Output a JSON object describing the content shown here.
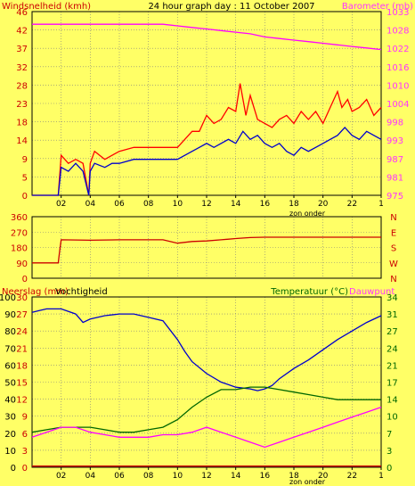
{
  "colors": {
    "background": "#ffff66",
    "axis": "#000000",
    "grid": "#7f7f7f",
    "wind_label": "#cc0000",
    "baro_label": "#ff33ff",
    "green_label": "#006600",
    "dir_label": "#cc0000",
    "rain_label": "#cc0000"
  },
  "chart_data": [
    {
      "type": "line",
      "title": "24 hour graph day : 11 October 2007",
      "ylabel_left": "Windsnelheid (kmh)",
      "ylabel_right": "Barometer (mb)",
      "yticks_left": [
        "0",
        "5",
        "9",
        "14",
        "18",
        "23",
        "28",
        "32",
        "37",
        "42",
        "46"
      ],
      "yticks_right": [
        "975",
        "981",
        "987",
        "993",
        "998",
        "1004",
        "1010",
        "1016",
        "1022",
        "1028",
        "1033"
      ],
      "ylim_left": [
        0,
        46
      ],
      "ylim_right": [
        975,
        1033
      ],
      "xticks": [
        "02",
        "04",
        "06",
        "08",
        "10",
        "12",
        "14",
        "16",
        "18",
        "20",
        "22",
        "1"
      ],
      "xnote": "zon onder",
      "xlim": [
        0,
        24
      ],
      "series": [
        {
          "color": "#ff00ff",
          "axis": "right",
          "x": [
            0,
            1,
            2,
            3,
            4,
            5,
            6,
            7,
            8,
            9,
            10,
            11,
            12,
            13,
            14,
            15,
            16,
            17,
            18,
            19,
            20,
            21,
            22,
            23,
            24
          ],
          "y": [
            1029,
            1029,
            1029,
            1029,
            1029,
            1029,
            1029,
            1029,
            1029,
            1029,
            1028.5,
            1028,
            1027.5,
            1027,
            1026.5,
            1026,
            1025,
            1024.5,
            1024,
            1023.5,
            1023,
            1022.5,
            1022,
            1021.5,
            1021
          ]
        },
        {
          "color": "#ff0000",
          "axis": "left",
          "x": [
            0,
            1.8,
            2,
            2.5,
            3,
            3.5,
            3.9,
            4,
            4.3,
            5,
            5.5,
            6,
            7,
            8,
            9,
            10,
            10.5,
            11,
            11.5,
            12,
            12.5,
            13,
            13.5,
            14,
            14.3,
            14.7,
            15,
            15.5,
            16,
            16.5,
            17,
            17.5,
            18,
            18.5,
            19,
            19.5,
            20,
            20.5,
            21,
            21.3,
            21.7,
            22,
            22.5,
            23,
            23.5,
            24
          ],
          "y": [
            0,
            0,
            10,
            8,
            9,
            8,
            0,
            8,
            11,
            9,
            10,
            11,
            12,
            12,
            12,
            12,
            14,
            16,
            16,
            20,
            18,
            19,
            22,
            21,
            28,
            20,
            25,
            19,
            18,
            17,
            19,
            20,
            18,
            21,
            19,
            21,
            18,
            22,
            26,
            22,
            24,
            21,
            22,
            24,
            20,
            22
          ]
        },
        {
          "color": "#0000cc",
          "axis": "left",
          "x": [
            0,
            1.8,
            2,
            2.5,
            3,
            3.5,
            3.9,
            4,
            4.3,
            5,
            5.5,
            6,
            7,
            8,
            9,
            10,
            10.5,
            11,
            11.5,
            12,
            12.5,
            13,
            13.5,
            14,
            14.5,
            15,
            15.5,
            16,
            16.5,
            17,
            17.5,
            18,
            18.5,
            19,
            19.5,
            20,
            20.5,
            21,
            21.5,
            22,
            22.5,
            23,
            23.5,
            24
          ],
          "y": [
            0,
            0,
            7,
            6,
            8,
            6,
            0,
            6,
            8,
            7,
            8,
            8,
            9,
            9,
            9,
            9,
            10,
            11,
            12,
            13,
            12,
            13,
            14,
            13,
            16,
            14,
            15,
            13,
            12,
            13,
            11,
            10,
            12,
            11,
            12,
            13,
            14,
            15,
            17,
            15,
            14,
            16,
            15,
            14
          ]
        }
      ]
    },
    {
      "type": "line",
      "ylabel_left": "",
      "yticks_left": [
        "0",
        "90",
        "180",
        "270",
        "360"
      ],
      "ylim_left": [
        0,
        360
      ],
      "right_labels": [
        "N",
        "W",
        "S",
        "E",
        "N"
      ],
      "xlim": [
        0,
        24
      ],
      "series": [
        {
          "color": "#cc0000",
          "axis": "left",
          "x": [
            0,
            1.8,
            1.9,
            2,
            4,
            6,
            8,
            9,
            10,
            11,
            12,
            13,
            14,
            15,
            16,
            17,
            18,
            19,
            20,
            21,
            22,
            23,
            24
          ],
          "y": [
            90,
            90,
            160,
            225,
            222,
            225,
            225,
            225,
            205,
            215,
            218,
            225,
            232,
            238,
            240,
            240,
            240,
            240,
            240,
            240,
            240,
            240,
            240
          ]
        }
      ]
    },
    {
      "type": "line",
      "ylabel_left": "Neerslag (mm)",
      "ylabel_left2": "Vochtigheid",
      "ylabel_right": "Temperatuur (°C)",
      "ylabel_right2": "Dauwpunt",
      "yticks_rain": [
        "0",
        "3",
        "6",
        "9",
        "12",
        "15",
        "18",
        "21",
        "24",
        "27",
        "30"
      ],
      "yticks_humid": [
        "0",
        "10",
        "20",
        "30",
        "40",
        "50",
        "60",
        "70",
        "80",
        "90",
        "100"
      ],
      "yticks_right": [
        "0",
        "3",
        "7",
        "10",
        "14",
        "17",
        "21",
        "24",
        "27",
        "31",
        "34"
      ],
      "ylim_rain": [
        0,
        30
      ],
      "ylim_humid": [
        0,
        100
      ],
      "ylim_right": [
        0,
        34
      ],
      "xticks": [
        "02",
        "04",
        "06",
        "08",
        "10",
        "12",
        "14",
        "16",
        "18",
        "20",
        "22",
        "1"
      ],
      "xnote": "zon onder",
      "xlim": [
        0,
        24
      ],
      "series": [
        {
          "color": "#0000cc",
          "axis": "humid",
          "x": [
            0,
            0.5,
            1,
            2,
            3,
            3.5,
            4,
            5,
            6,
            7,
            8,
            9,
            10,
            10.5,
            11,
            12,
            13,
            14,
            15,
            15.5,
            16,
            16.5,
            17,
            18,
            19,
            20,
            21,
            22,
            23,
            24
          ],
          "y": [
            91,
            92,
            93,
            93,
            90,
            85,
            87,
            89,
            90,
            90,
            88,
            86,
            75,
            68,
            62,
            55,
            50,
            47,
            46,
            45,
            46,
            48,
            52,
            58,
            63,
            69,
            75,
            80,
            85,
            89
          ]
        },
        {
          "color": "#006600",
          "axis": "right",
          "x": [
            0,
            1,
            2,
            3,
            4,
            5,
            6,
            7,
            8,
            9,
            10,
            11,
            12,
            13,
            14,
            15,
            16,
            17,
            18,
            19,
            20,
            21,
            22,
            23,
            24
          ],
          "y": [
            7,
            7.5,
            8,
            8,
            8,
            7.5,
            7,
            7,
            7.5,
            8,
            9.5,
            12,
            14,
            15.5,
            15.5,
            16,
            16,
            15.5,
            15,
            14.5,
            14,
            13.5,
            13.5,
            13.5,
            13.5
          ]
        },
        {
          "color": "#ff00ff",
          "axis": "right",
          "x": [
            0,
            1,
            2,
            3,
            4,
            5,
            6,
            7,
            8,
            9,
            10,
            11,
            12,
            13,
            14,
            15,
            16,
            17,
            18,
            19,
            20,
            21,
            22,
            23,
            24
          ],
          "y": [
            6,
            7,
            8,
            8,
            7,
            6.5,
            6,
            6,
            6,
            6.5,
            6.5,
            7,
            8,
            7,
            6,
            5,
            4,
            5,
            6,
            7,
            8,
            9,
            10,
            11,
            12
          ]
        },
        {
          "color": "#cc0000",
          "axis": "rain",
          "x": [
            0,
            24
          ],
          "y": [
            0.2,
            0.2
          ]
        }
      ]
    }
  ]
}
